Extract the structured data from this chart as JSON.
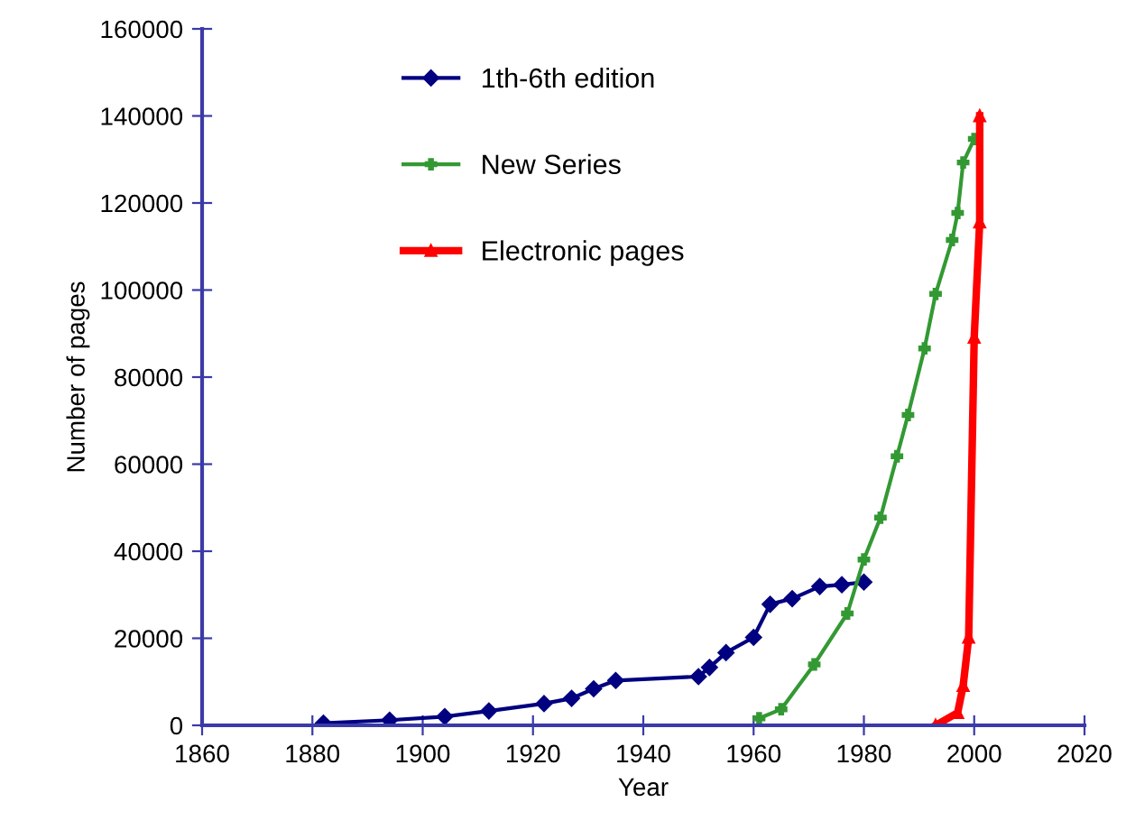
{
  "chart_data": {
    "type": "line",
    "xlabel": "Year",
    "ylabel": "Number of pages",
    "xlim": [
      1860,
      2020
    ],
    "xticks": [
      1860,
      1880,
      1900,
      1920,
      1940,
      1960,
      1980,
      2000,
      2020
    ],
    "ylim": [
      0,
      160000
    ],
    "yticks": [
      0,
      20000,
      40000,
      60000,
      80000,
      100000,
      120000,
      140000,
      160000
    ],
    "grid": false,
    "legend": "top left",
    "series": [
      {
        "name": "1th-6th edition",
        "color": "#000080",
        "marker": "diamond",
        "x": [
          1882,
          1894,
          1904,
          1912,
          1922,
          1927,
          1931,
          1935,
          1950,
          1952,
          1955,
          1960,
          1963,
          1967,
          1972,
          1976,
          1980
        ],
        "values": [
          500,
          1200,
          2000,
          3300,
          5000,
          6200,
          8400,
          10300,
          11200,
          13300,
          16700,
          20200,
          27800,
          29100,
          31900,
          32300,
          32900
        ]
      },
      {
        "name": "New Series",
        "color": "#339933",
        "marker": "cross",
        "x": [
          1961,
          1965,
          1971,
          1977,
          1980,
          1983,
          1986,
          1988,
          1991,
          1993,
          1996,
          1997,
          1998,
          2000
        ],
        "values": [
          1600,
          3700,
          14000,
          25700,
          38100,
          47700,
          61800,
          71300,
          86600,
          99100,
          111500,
          117700,
          129300,
          134700
        ]
      },
      {
        "name": "Electronic pages",
        "color": "#ff0000",
        "marker": "triangle",
        "x": [
          1993,
          1997,
          1998,
          1999,
          2000,
          2001,
          2001
        ],
        "values": [
          0,
          2900,
          9100,
          20200,
          89100,
          115600,
          140000
        ]
      }
    ]
  }
}
